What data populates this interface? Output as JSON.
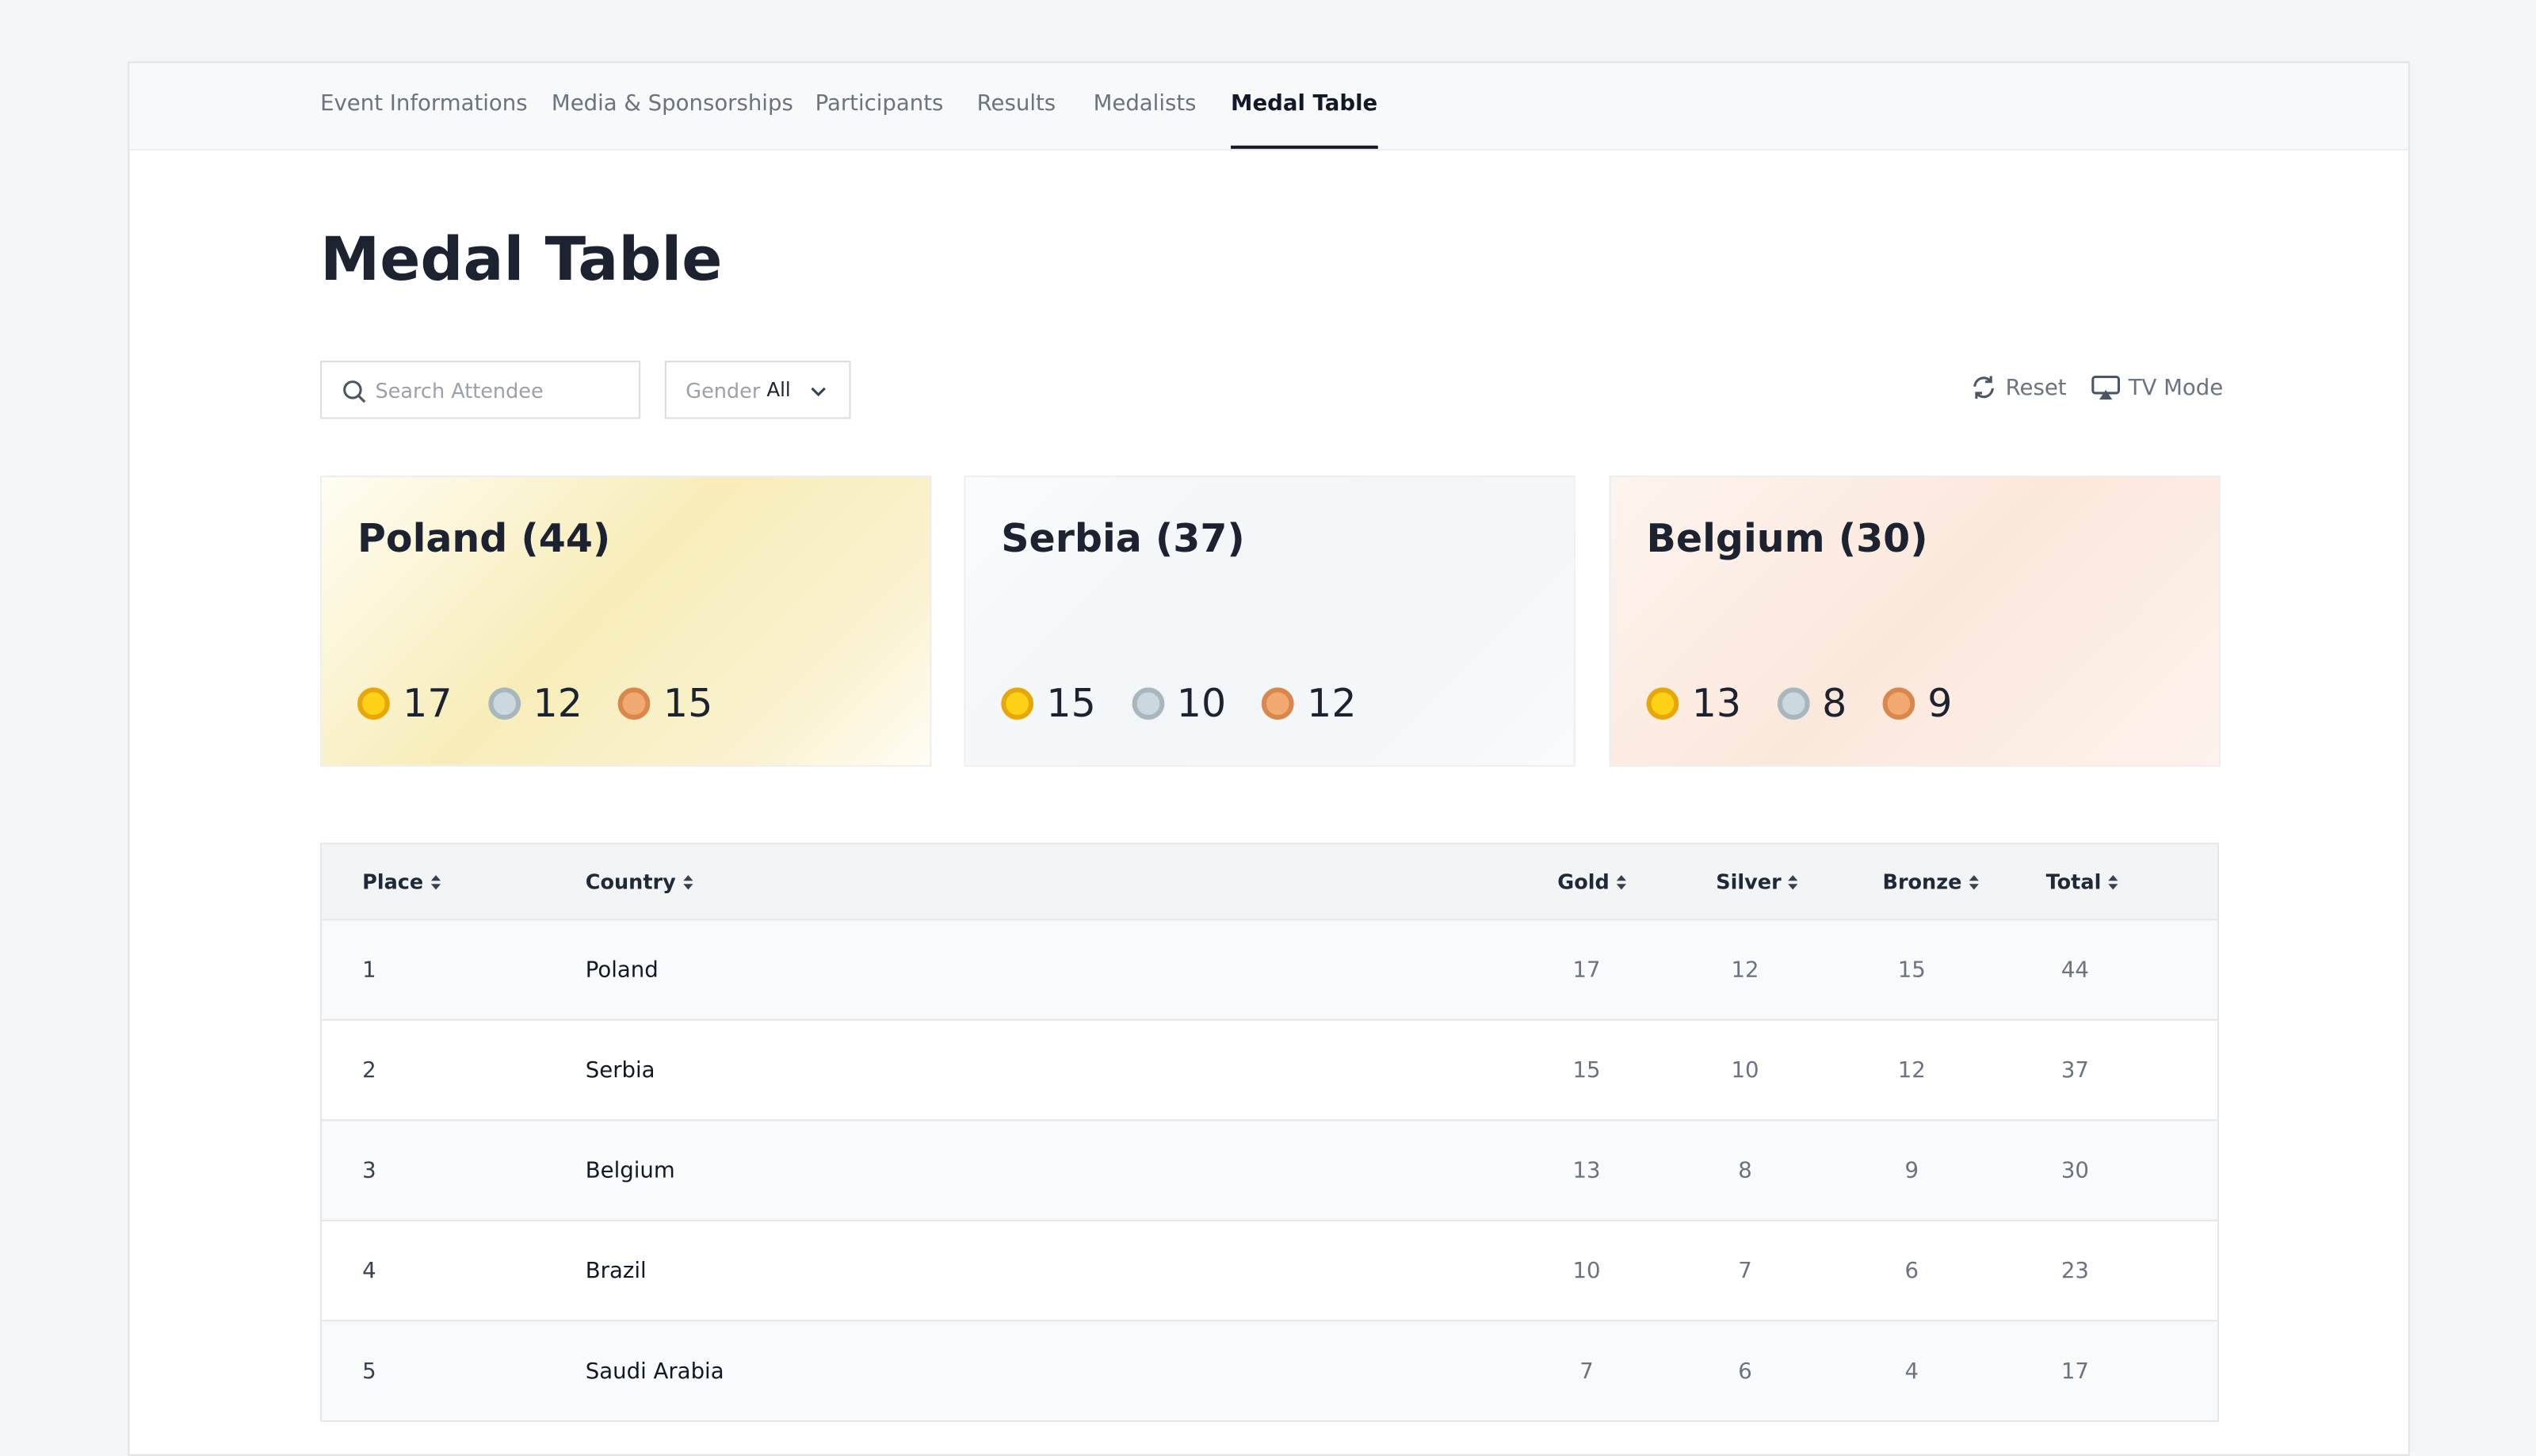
{
  "nav": {
    "tabs": [
      "Event Informations",
      "Media & Sponsorships",
      "Participants",
      "Results",
      "Medalists",
      "Medal Table"
    ],
    "active": 5
  },
  "header": {
    "title": "Medal Table"
  },
  "filters": {
    "search_placeholder": "Search Attendee",
    "gender_label": "Gender",
    "gender_value": "All",
    "reset": "Reset",
    "tv_mode": "TV Mode"
  },
  "cards": [
    {
      "title": "Poland (44)",
      "gold": 17,
      "silver": 12,
      "bronze": 15
    },
    {
      "title": "Serbia (37)",
      "gold": 15,
      "silver": 10,
      "bronze": 12
    },
    {
      "title": "Belgium (30)",
      "gold": 13,
      "silver": 8,
      "bronze": 9
    }
  ],
  "table": {
    "columns": [
      "Place",
      "Country",
      "Gold",
      "Silver",
      "Bronze",
      "Total"
    ],
    "rows": [
      [
        1,
        "Poland",
        17,
        12,
        15,
        44
      ],
      [
        2,
        "Serbia",
        15,
        10,
        12,
        37
      ],
      [
        3,
        "Belgium",
        13,
        8,
        9,
        30
      ],
      [
        4,
        "Brazil",
        10,
        7,
        6,
        23
      ],
      [
        5,
        "Saudi Arabia",
        7,
        6,
        4,
        17
      ]
    ]
  }
}
